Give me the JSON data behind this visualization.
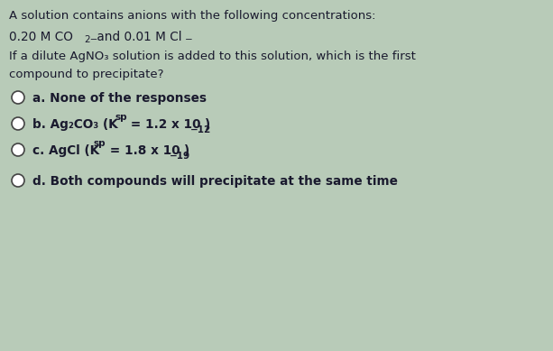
{
  "background_color": "#b8cbb8",
  "text_color": "#1a1a2e",
  "title_line1": "A solution contains anions with the following concentrations:",
  "title_line3": "If a dilute AgNO₃ solution is added to this solution, which is the first",
  "title_line4": "compound to precipitate?",
  "option_a": "a. None of the responses",
  "option_b1": "b. Ag₂CO₃ (K",
  "option_b2": "sp",
  "option_b3": " = 1.2 x 10",
  "option_b4": "−12",
  "option_b5": ")",
  "option_c1": "c. AgCl (K",
  "option_c2": "sp",
  "option_c3": " = 1.8 x 10",
  "option_c4": "−19",
  "option_c5": ")",
  "option_d": "d. Both compounds will precipitate at the same time",
  "font_size_main": 9.5,
  "font_size_options": 9.8,
  "font_size_sub": 7.5
}
